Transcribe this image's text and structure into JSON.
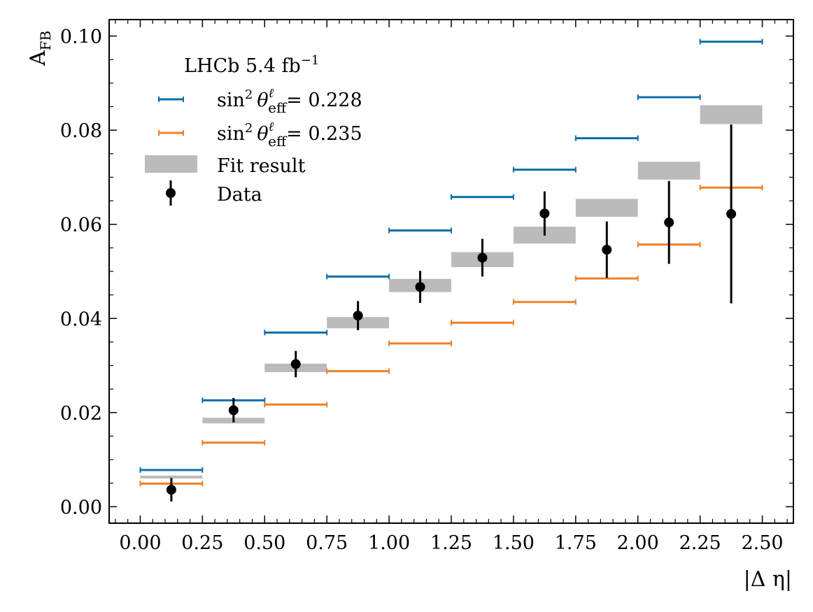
{
  "chart_data": {
    "type": "scatter",
    "title": "",
    "xlabel": "|Δ η|",
    "ylabel_main": "A",
    "ylabel_sub": "FB",
    "xlim": [
      -0.125,
      2.625
    ],
    "ylim": [
      -0.0035,
      0.1035
    ],
    "xticks": [
      0.0,
      0.25,
      0.5,
      0.75,
      1.0,
      1.25,
      1.5,
      1.75,
      2.0,
      2.25,
      2.5
    ],
    "xtick_labels": [
      "0.00",
      "0.25",
      "0.50",
      "0.75",
      "1.00",
      "1.25",
      "1.50",
      "1.75",
      "2.00",
      "2.25",
      "2.50"
    ],
    "yticks": [
      0.0,
      0.02,
      0.04,
      0.06,
      0.08,
      0.1
    ],
    "ytick_labels": [
      "0.00",
      "0.02",
      "0.04",
      "0.06",
      "0.08",
      "0.10"
    ],
    "bin_edges": [
      0,
      0.25,
      0.5,
      0.75,
      1.0,
      1.25,
      1.5,
      1.75,
      2.0,
      2.25,
      2.5
    ],
    "legend": {
      "title": "LHCb 5.4 fb",
      "title_sup": "−1",
      "placement": "upper-left",
      "entries": [
        {
          "key": "s228",
          "pre": "sin",
          "sup": "2",
          "theta": "θ",
          "theta_sup": "ℓ",
          "theta_sub": "eff",
          "value": "= 0.228"
        },
        {
          "key": "s235",
          "pre": "sin",
          "sup": "2",
          "theta": "θ",
          "theta_sup": "ℓ",
          "theta_sub": "eff",
          "value": "= 0.235"
        },
        {
          "key": "fit",
          "text": "Fit result"
        },
        {
          "key": "data",
          "text": "Data"
        }
      ]
    },
    "series": [
      {
        "name": "sin2 theta_eff = 0.228",
        "color": "#0C6FAA",
        "values": [
          0.0078,
          0.0226,
          0.037,
          0.0489,
          0.0587,
          0.0658,
          0.0716,
          0.0783,
          0.087,
          0.0988
        ]
      },
      {
        "name": "sin2 theta_eff = 0.235",
        "color": "#F08028",
        "values": [
          0.0049,
          0.0136,
          0.0217,
          0.0288,
          0.0347,
          0.0391,
          0.0435,
          0.0485,
          0.0557,
          0.0678
        ]
      },
      {
        "name": "Fit result",
        "color": "#BBBBBB",
        "centers": [
          0.0063,
          0.0183,
          0.0295,
          0.0391,
          0.047,
          0.0525,
          0.0577,
          0.0635,
          0.0714,
          0.0833
        ],
        "half_widths": [
          0.0003,
          0.0006,
          0.0009,
          0.0012,
          0.0014,
          0.0016,
          0.0018,
          0.0019,
          0.0019,
          0.002
        ]
      },
      {
        "name": "Data",
        "color": "#000000",
        "x": [
          0.125,
          0.375,
          0.625,
          0.875,
          1.125,
          1.375,
          1.625,
          1.875,
          2.125,
          2.375
        ],
        "values": [
          0.0036,
          0.0205,
          0.0303,
          0.0406,
          0.0467,
          0.0529,
          0.0623,
          0.0546,
          0.0604,
          0.0622
        ],
        "errors": [
          0.0025,
          0.0026,
          0.0028,
          0.0031,
          0.0034,
          0.004,
          0.0047,
          0.006,
          0.0088,
          0.019
        ]
      }
    ]
  }
}
